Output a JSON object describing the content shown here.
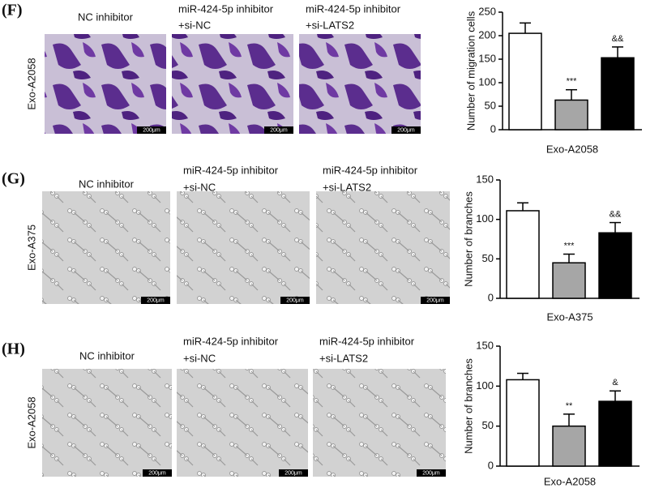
{
  "panels": [
    {
      "label": "(F)",
      "row_label": "Exo-A2058",
      "scale_bar": "200μm",
      "columns": [
        [
          "NC inhibitor"
        ],
        [
          "miR-424-5p inhibitor",
          "+si-NC"
        ],
        [
          "miR-424-5p inhibitor",
          "+si-LATS2"
        ]
      ]
    },
    {
      "label": "(G)",
      "row_label": "Exo-A375",
      "scale_bar": "200μm",
      "columns": [
        [
          "NC inhibitor"
        ],
        [
          "miR-424-5p inhibitor",
          "+si-NC"
        ],
        [
          "miR-424-5p inhibitor",
          "+si-LATS2"
        ]
      ]
    },
    {
      "label": "(H)",
      "row_label": "Exo-A2058",
      "scale_bar": "200μm",
      "columns": [
        [
          "NC inhibitor"
        ],
        [
          "miR-424-5p inhibitor",
          "+si-NC"
        ],
        [
          "miR-424-5p inhibitor",
          "+si-LATS2"
        ]
      ]
    }
  ],
  "chart_data": [
    {
      "type": "bar",
      "y_label": "Number of migration cells",
      "x_label": "Exo-A2058",
      "categories": [
        null,
        null,
        null
      ],
      "values": [
        205,
        63,
        153
      ],
      "errors": [
        22,
        22,
        23
      ],
      "colors": [
        "#ffffff",
        "#a6a6a6",
        "#000000"
      ],
      "annotations": [
        null,
        "***",
        "&&"
      ],
      "ylim": [
        0,
        250
      ],
      "yticks": [
        0,
        50,
        100,
        150,
        200,
        250
      ]
    },
    {
      "type": "bar",
      "y_label": "Number of branches",
      "x_label": "Exo-A375",
      "categories": [
        null,
        null,
        null
      ],
      "values": [
        111,
        45,
        83
      ],
      "errors": [
        10,
        11,
        13
      ],
      "colors": [
        "#ffffff",
        "#a6a6a6",
        "#000000"
      ],
      "annotations": [
        null,
        "***",
        "&&"
      ],
      "ylim": [
        0,
        150
      ],
      "yticks": [
        0,
        50,
        100,
        150
      ]
    },
    {
      "type": "bar",
      "y_label": "Number of branches",
      "x_label": "Exo-A2058",
      "categories": [
        null,
        null,
        null
      ],
      "values": [
        108,
        50,
        81
      ],
      "errors": [
        8,
        15,
        13
      ],
      "colors": [
        "#ffffff",
        "#a6a6a6",
        "#000000"
      ],
      "annotations": [
        null,
        "**",
        "&"
      ],
      "ylim": [
        0,
        150
      ],
      "yticks": [
        0,
        50,
        100,
        150
      ]
    }
  ]
}
